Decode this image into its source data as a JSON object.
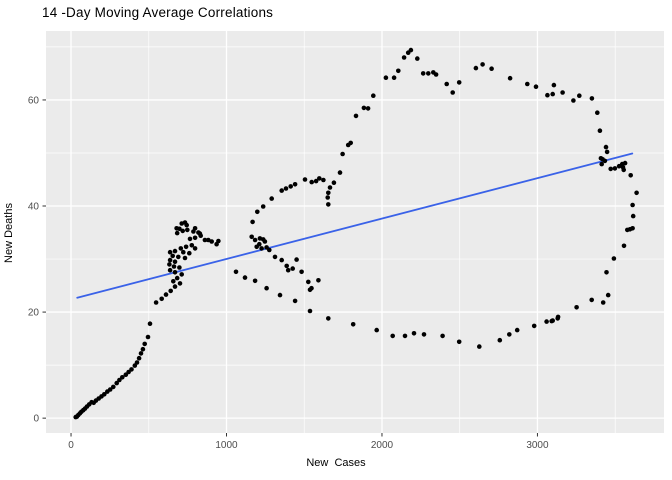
{
  "window": {
    "title": "14 -Day Moving Average Correlations"
  },
  "chart_data": {
    "type": "scatter",
    "title": "14 -Day Moving Average Correlations",
    "xlabel": "New  Cases",
    "ylabel": "New Deaths",
    "legend": "none",
    "grid": "on",
    "panel_bg": "#EBEBEB",
    "grid_color": "#FFFFFF",
    "tick_color": "#333333",
    "axis_text_color": "#4D4D4D",
    "point_color": "#000000",
    "xlim": [
      -161,
      3814
    ],
    "ylim": [
      -2.8,
      73.0
    ],
    "x_ticks_major": [
      0,
      1000,
      2000,
      3000
    ],
    "x_ticks_minor": [
      500,
      1500,
      2500,
      3500
    ],
    "y_ticks_major": [
      0,
      20,
      40,
      60
    ],
    "y_ticks_minor": [
      10,
      30,
      50,
      70
    ],
    "trend_line": {
      "color": "#3A62E8",
      "x1": 40,
      "y1": 22.7,
      "x2": 3610,
      "y2": 49.9
    },
    "points": [
      [
        30,
        0.2
      ],
      [
        38,
        0.3
      ],
      [
        47,
        0.6
      ],
      [
        57,
        0.9
      ],
      [
        67,
        1.2
      ],
      [
        78,
        1.5
      ],
      [
        90,
        1.8
      ],
      [
        103,
        2.2
      ],
      [
        117,
        2.6
      ],
      [
        132,
        3.0
      ],
      [
        146,
        2.9
      ],
      [
        160,
        3.3
      ],
      [
        178,
        3.7
      ],
      [
        196,
        4.1
      ],
      [
        214,
        4.5
      ],
      [
        233,
        5.0
      ],
      [
        252,
        5.4
      ],
      [
        272,
        5.9
      ],
      [
        294,
        6.6
      ],
      [
        311,
        7.2
      ],
      [
        330,
        7.7
      ],
      [
        352,
        8.2
      ],
      [
        370,
        8.7
      ],
      [
        389,
        9.2
      ],
      [
        410,
        9.9
      ],
      [
        424,
        10.5
      ],
      [
        438,
        11.3
      ],
      [
        450,
        12.2
      ],
      [
        462,
        13.0
      ],
      [
        474,
        14.0
      ],
      [
        495,
        15.3
      ],
      [
        508,
        17.8
      ],
      [
        547,
        21.8
      ],
      [
        733,
        36.9
      ],
      [
        712,
        36.7
      ],
      [
        744,
        36.4
      ],
      [
        697,
        35.7
      ],
      [
        679,
        35.8
      ],
      [
        798,
        35.8
      ],
      [
        718,
        35.3
      ],
      [
        748,
        35.5
      ],
      [
        787,
        35.2
      ],
      [
        819,
        35.0
      ],
      [
        683,
        34.9
      ],
      [
        829,
        34.8
      ],
      [
        834,
        34.4
      ],
      [
        798,
        34.0
      ],
      [
        765,
        33.8
      ],
      [
        861,
        33.6
      ],
      [
        883,
        33.6
      ],
      [
        905,
        33.3
      ],
      [
        936,
        32.8
      ],
      [
        948,
        33.4
      ],
      [
        777,
        32.6
      ],
      [
        740,
        32.3
      ],
      [
        706,
        32.0
      ],
      [
        798,
        32.0
      ],
      [
        669,
        31.5
      ],
      [
        637,
        31.3
      ],
      [
        722,
        31.3
      ],
      [
        761,
        31.1
      ],
      [
        654,
        30.6
      ],
      [
        690,
        30.4
      ],
      [
        733,
        30.2
      ],
      [
        637,
        29.8
      ],
      [
        669,
        29.5
      ],
      [
        633,
        29.0
      ],
      [
        662,
        28.6
      ],
      [
        697,
        28.4
      ],
      [
        637,
        27.9
      ],
      [
        669,
        27.5
      ],
      [
        712,
        27.1
      ],
      [
        683,
        26.4
      ],
      [
        658,
        25.8
      ],
      [
        701,
        25.4
      ],
      [
        669,
        24.8
      ],
      [
        641,
        24.0
      ],
      [
        611,
        23.3
      ],
      [
        583,
        22.5
      ],
      [
        1162,
        34.2
      ],
      [
        1184,
        33.6
      ],
      [
        1215,
        33.9
      ],
      [
        1236,
        33.7
      ],
      [
        1247,
        33.3
      ],
      [
        1211,
        32.8
      ],
      [
        1194,
        32.3
      ],
      [
        1226,
        32.0
      ],
      [
        1258,
        32.2
      ],
      [
        1275,
        31.7
      ],
      [
        1168,
        37.0
      ],
      [
        1198,
        38.9
      ],
      [
        1236,
        39.9
      ],
      [
        1291,
        41.4
      ],
      [
        1355,
        42.9
      ],
      [
        1383,
        43.3
      ],
      [
        1413,
        43.7
      ],
      [
        1441,
        44.1
      ],
      [
        1505,
        45.0
      ],
      [
        1548,
        44.5
      ],
      [
        1576,
        44.7
      ],
      [
        1597,
        45.2
      ],
      [
        1623,
        44.9
      ],
      [
        1691,
        44.4
      ],
      [
        1666,
        43.5
      ],
      [
        1655,
        42.5
      ],
      [
        1651,
        41.6
      ],
      [
        1655,
        40.3
      ],
      [
        1730,
        46.3
      ],
      [
        1747,
        49.8
      ],
      [
        1783,
        51.5
      ],
      [
        1799,
        51.9
      ],
      [
        1833,
        57.0
      ],
      [
        1884,
        58.5
      ],
      [
        1911,
        58.4
      ],
      [
        1944,
        60.8
      ],
      [
        2025,
        64.2
      ],
      [
        2078,
        64.2
      ],
      [
        2105,
        65.5
      ],
      [
        2142,
        68.0
      ],
      [
        2169,
        68.9
      ],
      [
        2186,
        69.4
      ],
      [
        2227,
        67.8
      ],
      [
        2265,
        65.0
      ],
      [
        2298,
        65.0
      ],
      [
        2330,
        65.2
      ],
      [
        2348,
        64.8
      ],
      [
        2416,
        63.0
      ],
      [
        2455,
        61.4
      ],
      [
        2497,
        63.3
      ],
      [
        2604,
        66.0
      ],
      [
        2647,
        66.7
      ],
      [
        2705,
        65.9
      ],
      [
        2824,
        64.1
      ],
      [
        2935,
        63.0
      ],
      [
        2991,
        62.5
      ],
      [
        3064,
        60.9
      ],
      [
        3098,
        61.1
      ],
      [
        3106,
        62.8
      ],
      [
        3162,
        61.4
      ],
      [
        3231,
        59.9
      ],
      [
        3269,
        60.8
      ],
      [
        3350,
        60.3
      ],
      [
        3385,
        57.6
      ],
      [
        3402,
        54.2
      ],
      [
        3441,
        51.1
      ],
      [
        3448,
        50.2
      ],
      [
        3408,
        49.0
      ],
      [
        3419,
        48.8
      ],
      [
        3413,
        47.9
      ],
      [
        3434,
        48.5
      ],
      [
        3471,
        47.0
      ],
      [
        3498,
        47.1
      ],
      [
        3525,
        47.5
      ],
      [
        3545,
        47.9
      ],
      [
        3564,
        48.1
      ],
      [
        3550,
        47.3
      ],
      [
        3555,
        46.8
      ],
      [
        3600,
        45.8
      ],
      [
        3638,
        42.5
      ],
      [
        3612,
        40.2
      ],
      [
        3616,
        38.1
      ],
      [
        3578,
        35.5
      ],
      [
        3595,
        35.6
      ],
      [
        3612,
        35.8
      ],
      [
        3557,
        32.5
      ],
      [
        3492,
        30.1
      ],
      [
        3444,
        27.5
      ],
      [
        3455,
        23.2
      ],
      [
        3423,
        21.8
      ],
      [
        3349,
        22.3
      ],
      [
        3252,
        20.9
      ],
      [
        3133,
        19.1
      ],
      [
        3098,
        18.4
      ],
      [
        3059,
        18.2
      ],
      [
        3092,
        18.3
      ],
      [
        3130,
        18.8
      ],
      [
        1344,
        23.2
      ],
      [
        1441,
        22.1
      ],
      [
        1537,
        20.2
      ],
      [
        1655,
        18.8
      ],
      [
        1815,
        17.7
      ],
      [
        1966,
        16.6
      ],
      [
        2069,
        15.5
      ],
      [
        2148,
        15.5
      ],
      [
        2206,
        16.0
      ],
      [
        2270,
        15.8
      ],
      [
        2390,
        15.5
      ],
      [
        2497,
        14.4
      ],
      [
        2626,
        13.5
      ],
      [
        2758,
        14.7
      ],
      [
        2819,
        15.8
      ],
      [
        2870,
        16.6
      ],
      [
        2979,
        17.4
      ],
      [
        1061,
        27.6
      ],
      [
        1119,
        26.5
      ],
      [
        1184,
        25.9
      ],
      [
        1258,
        24.5
      ],
      [
        1312,
        30.4
      ],
      [
        1355,
        29.8
      ],
      [
        1387,
        28.7
      ],
      [
        1397,
        27.9
      ],
      [
        1426,
        28.2
      ],
      [
        1451,
        29.9
      ],
      [
        1483,
        27.6
      ],
      [
        1526,
        25.7
      ],
      [
        1547,
        24.5
      ],
      [
        1591,
        26.0
      ],
      [
        1537,
        24.2
      ]
    ]
  }
}
